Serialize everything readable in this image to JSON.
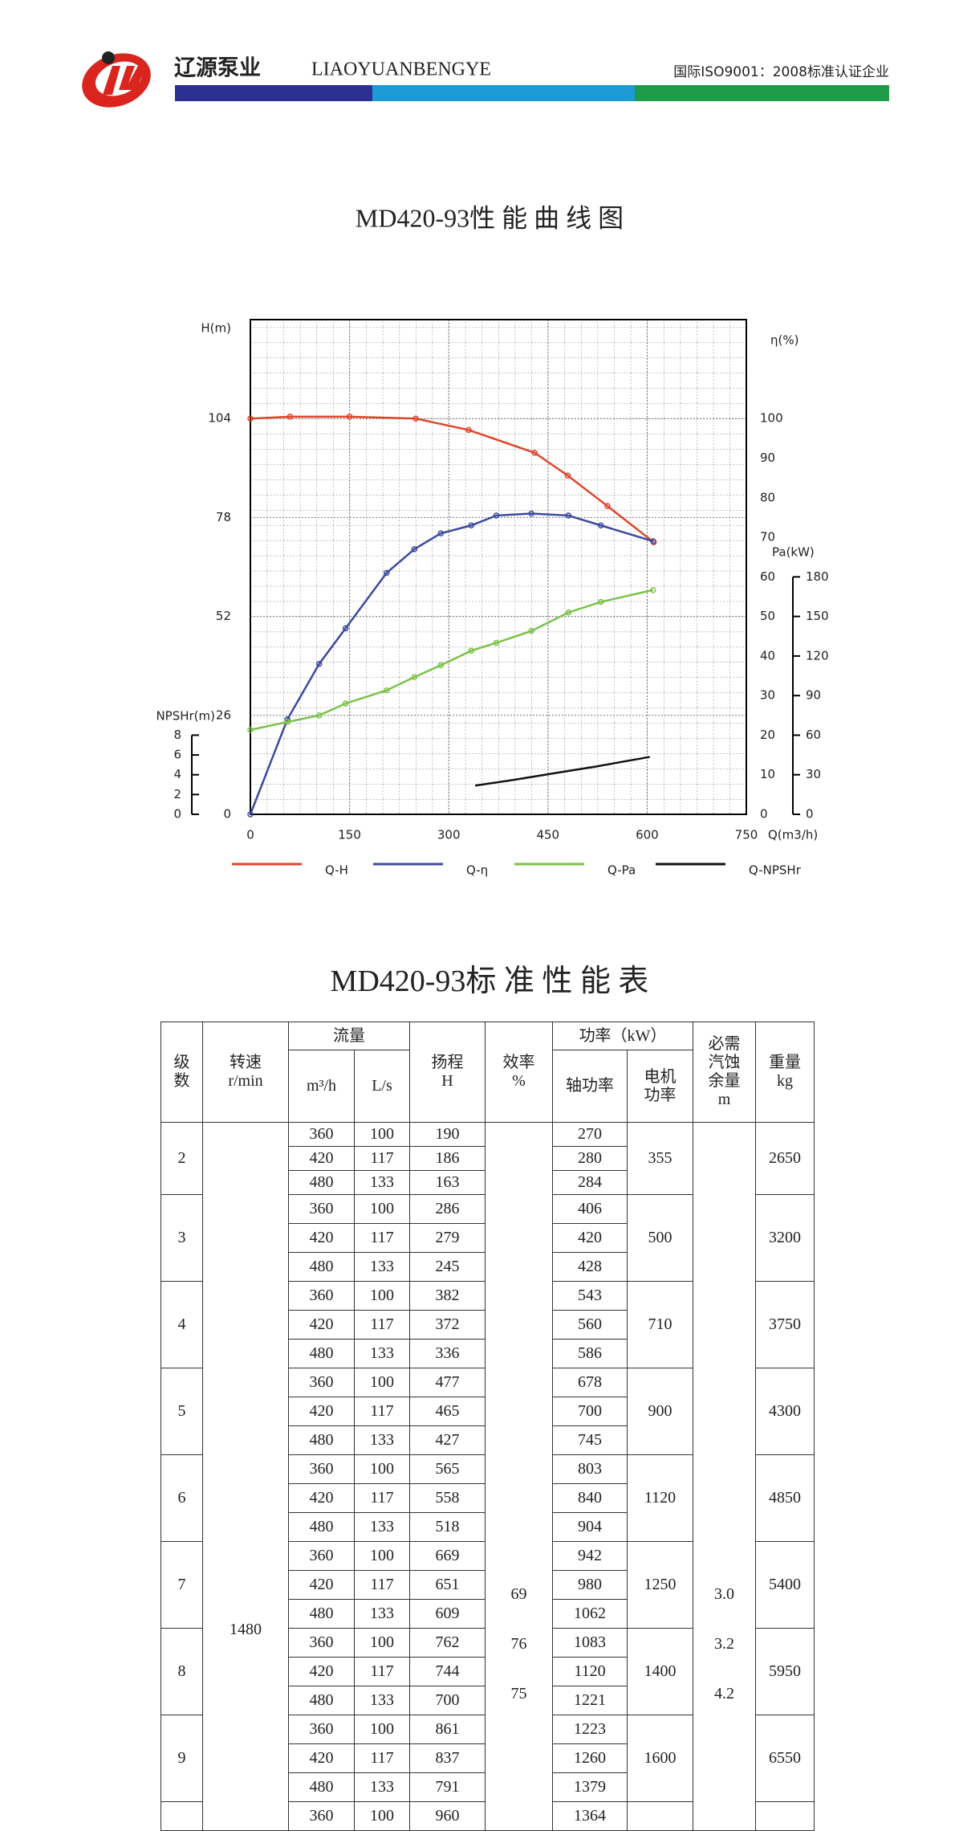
{
  "header": {
    "brand_cn": "辽源泵业",
    "brand_en": "LIAOYUANBENGYE",
    "certification": "国际ISO9001：2008标准认证企业"
  },
  "chart_data": {
    "type": "line",
    "title": "MD420-93性 能 曲 线 图",
    "x_label": "Q(m3/h)",
    "xlim": [
      0,
      750
    ],
    "xticks": [
      0,
      150,
      300,
      450,
      600,
      750
    ],
    "y_label": "H(m)",
    "ylim": [
      0,
      130
    ],
    "yticks": [
      0,
      26,
      52,
      78,
      104
    ],
    "y2_label": "η(%)",
    "y2lim": [
      0,
      125
    ],
    "y2ticks": [
      0,
      10,
      20,
      30,
      40,
      50,
      60,
      70,
      80,
      90,
      100
    ],
    "y3_label": "Pa(kW)",
    "y3lim": [
      0,
      375
    ],
    "y3ticks": [
      0,
      30,
      60,
      90,
      120,
      150,
      180
    ],
    "y4_label": "NPSHr(m)",
    "y4lim": [
      0,
      50
    ],
    "y4ticks": [
      0,
      2,
      4,
      6,
      8
    ],
    "grid": true,
    "series": [
      {
        "name": "Q-H",
        "color": "#e0452b",
        "axis": "y",
        "marker": true,
        "x": [
          0,
          60,
          150,
          250,
          330,
          430,
          480,
          540,
          610
        ],
        "values": [
          104,
          104.5,
          104.5,
          104,
          101,
          95,
          89,
          81,
          71.5
        ]
      },
      {
        "name": "Q-η",
        "color": "#3b4aa0",
        "axis": "y2",
        "marker": true,
        "x": [
          0,
          56,
          104,
          144,
          206,
          248,
          288,
          334,
          372,
          425,
          481,
          530,
          609
        ],
        "values": [
          0,
          24,
          38,
          47,
          61,
          67,
          71,
          73,
          75.5,
          76,
          75.5,
          73,
          69
        ]
      },
      {
        "name": "Q-Pa",
        "color": "#7cc24a",
        "axis": "y3",
        "marker": true,
        "x": [
          0,
          56,
          104,
          144,
          206,
          248,
          288,
          334,
          372,
          425,
          481,
          530,
          609
        ],
        "values": [
          64,
          70,
          75,
          84,
          94,
          104,
          113,
          124,
          130,
          139,
          153,
          161,
          170
        ]
      },
      {
        "name": "Q-NPSHr",
        "color": "#111111",
        "axis": "y4",
        "marker": false,
        "x": [
          340,
          400,
          464,
          520,
          604
        ],
        "values": [
          2.9,
          3.5,
          4.2,
          4.8,
          5.8
        ]
      }
    ]
  },
  "table": {
    "title": "MD420-93标 准 性 能 表",
    "headers": {
      "stage": "级数",
      "speed": "转速",
      "speed_unit": "r/min",
      "flow": "流量",
      "flow_m3h": "m³/h",
      "flow_ls": "L/s",
      "head": "扬程",
      "head_unit": "H",
      "efficiency": "效率",
      "efficiency_unit": "%",
      "power": "功率（kW）",
      "shaft_power": "轴功率",
      "motor_power": "电机功率",
      "npsh": "必需汽蚀余量",
      "npsh_unit": "m",
      "weight": "重量",
      "weight_unit": "kg"
    },
    "speed": 1480,
    "efficiency": [
      69,
      76,
      75
    ],
    "npsh": [
      "3.0",
      "3.2",
      "4.2"
    ],
    "groups": [
      {
        "stage": 2,
        "motor": 355,
        "weight": 2650,
        "rows": [
          [
            360,
            100,
            190,
            270
          ],
          [
            420,
            117,
            186,
            280
          ],
          [
            480,
            133,
            163,
            284
          ]
        ]
      },
      {
        "stage": 3,
        "motor": 500,
        "weight": 3200,
        "rows": [
          [
            360,
            100,
            286,
            406
          ],
          [
            420,
            117,
            279,
            420
          ],
          [
            480,
            133,
            245,
            428
          ]
        ]
      },
      {
        "stage": 4,
        "motor": 710,
        "weight": 3750,
        "rows": [
          [
            360,
            100,
            382,
            543
          ],
          [
            420,
            117,
            372,
            560
          ],
          [
            480,
            133,
            336,
            586
          ]
        ]
      },
      {
        "stage": 5,
        "motor": 900,
        "weight": 4300,
        "rows": [
          [
            360,
            100,
            477,
            678
          ],
          [
            420,
            117,
            465,
            700
          ],
          [
            480,
            133,
            427,
            745
          ]
        ]
      },
      {
        "stage": 6,
        "motor": 1120,
        "weight": 4850,
        "rows": [
          [
            360,
            100,
            565,
            803
          ],
          [
            420,
            117,
            558,
            840
          ],
          [
            480,
            133,
            518,
            904
          ]
        ]
      },
      {
        "stage": 7,
        "motor": 1250,
        "weight": 5400,
        "rows": [
          [
            360,
            100,
            669,
            942
          ],
          [
            420,
            117,
            651,
            980
          ],
          [
            480,
            133,
            609,
            1062
          ]
        ]
      },
      {
        "stage": 8,
        "motor": 1400,
        "weight": 5950,
        "rows": [
          [
            360,
            100,
            762,
            1083
          ],
          [
            420,
            117,
            744,
            1120
          ],
          [
            480,
            133,
            700,
            1221
          ]
        ]
      },
      {
        "stage": 9,
        "motor": 1600,
        "weight": 6550,
        "rows": [
          [
            360,
            100,
            861,
            1223
          ],
          [
            420,
            117,
            837,
            1260
          ],
          [
            480,
            133,
            791,
            1379
          ]
        ]
      },
      {
        "rows": [
          [
            360,
            100,
            960,
            1364
          ]
        ]
      }
    ]
  }
}
